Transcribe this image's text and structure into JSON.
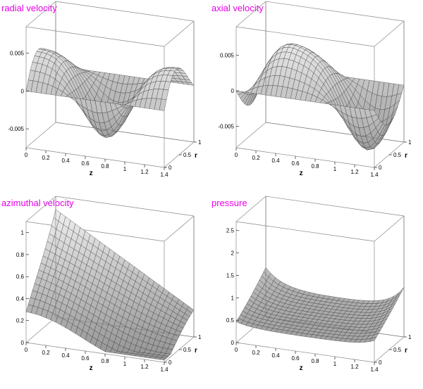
{
  "chart_data": [
    {
      "type": "surface",
      "title": "radial velocity",
      "xlabel": "z",
      "ylabel": "r",
      "zlabel": "",
      "xlim": [
        0,
        1.4
      ],
      "ylim": [
        0,
        1
      ],
      "zlim": [
        -0.0075,
        0.0085
      ],
      "x_ticks": [
        "0",
        "0.2",
        "0.4",
        "0.6",
        "0.8",
        "1",
        "1.2",
        "1.4"
      ],
      "y_ticks": [
        "0",
        "0.5",
        "1"
      ],
      "z_ticks": [
        {
          "value": 0.005,
          "label": "0.005"
        },
        {
          "value": 0,
          "label": "0"
        },
        {
          "value": -0.005,
          "label": "-0.005"
        }
      ],
      "kind": "radial",
      "peak": 0.0075,
      "trough": -0.0045,
      "base": 0.0,
      "grid": false
    },
    {
      "type": "surface",
      "title": "axial velocity",
      "xlabel": "z",
      "ylabel": "r",
      "zlabel": "",
      "xlim": [
        0,
        1.4
      ],
      "ylim": [
        0,
        1
      ],
      "zlim": [
        -0.008,
        0.009
      ],
      "x_ticks": [
        "0",
        "0.2",
        "0.4",
        "0.6",
        "0.8",
        "1",
        "1.2",
        "1.4"
      ],
      "y_ticks": [
        "0",
        "0.5",
        "1"
      ],
      "z_ticks": [
        {
          "value": 0.005,
          "label": "0.005"
        },
        {
          "value": 0,
          "label": "0"
        },
        {
          "value": -0.005,
          "label": "-0.005"
        }
      ],
      "kind": "axial",
      "peak": 0.0065,
      "trough": -0.0035,
      "base": 0.0,
      "grid": false
    },
    {
      "type": "surface",
      "title": "azimuthal velocity",
      "xlabel": "z",
      "ylabel": "r",
      "zlabel": "",
      "xlim": [
        0,
        1.4
      ],
      "ylim": [
        0,
        1
      ],
      "zlim": [
        0,
        1.1
      ],
      "x_ticks": [
        "0",
        "0.2",
        "0.4",
        "0.6",
        "0.8",
        "1",
        "1.2",
        "1.4"
      ],
      "y_ticks": [
        "0",
        "0.5",
        "1"
      ],
      "z_ticks": [
        {
          "value": 1,
          "label": "1"
        },
        {
          "value": 0.8,
          "label": "0.8"
        },
        {
          "value": 0.6,
          "label": "0.6"
        },
        {
          "value": 0.4,
          "label": "0.4"
        },
        {
          "value": 0.2,
          "label": "0.2"
        },
        {
          "value": 0,
          "label": "0"
        }
      ],
      "kind": "azimuthal",
      "peak": 1.0,
      "trough": 0.05,
      "base": 0.0,
      "grid": false
    },
    {
      "type": "surface",
      "title": "pressure",
      "xlabel": "z",
      "ylabel": "r",
      "zlabel": "",
      "xlim": [
        0,
        1.4
      ],
      "ylim": [
        0,
        1
      ],
      "zlim": [
        0,
        2.7
      ],
      "x_ticks": [
        "0",
        "0.2",
        "0.4",
        "0.6",
        "0.8",
        "1",
        "1.2",
        "1.4"
      ],
      "y_ticks": [
        "0",
        "0.5",
        "1"
      ],
      "z_ticks": [
        {
          "value": 2.5,
          "label": "2.5"
        },
        {
          "value": 2,
          "label": "2"
        },
        {
          "value": 1.5,
          "label": "1.5"
        },
        {
          "value": 1,
          "label": "1"
        },
        {
          "value": 0.5,
          "label": "0.5"
        },
        {
          "value": 0,
          "label": "0"
        }
      ],
      "kind": "pressure",
      "peak": 1.4,
      "trough": 0.35,
      "base": 0.0,
      "grid": false
    }
  ]
}
